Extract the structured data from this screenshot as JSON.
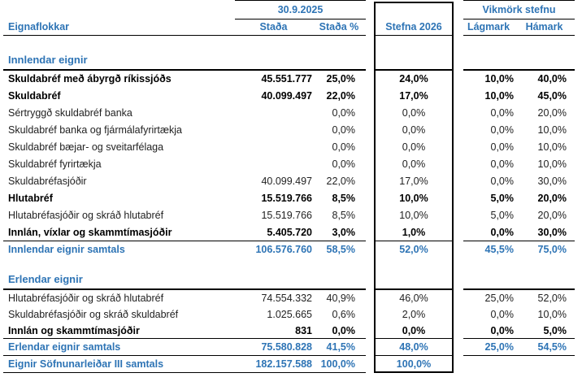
{
  "header": {
    "date_group": "30.9.2025",
    "vikmork_group": "Vikmörk stefnu",
    "col_label": "Eignaflokkar",
    "col_stada": "Staða",
    "col_stada_pct": "Staða %",
    "col_stefna": "Stefna 2026",
    "col_lagmark": "Lágmark",
    "col_hamark": "Hámark"
  },
  "colors": {
    "accent_blue": "#2E74B5",
    "rule_black": "#000000"
  },
  "rows": [
    {
      "type": "section",
      "gap_before": "lg",
      "label": "Innlendar eignir",
      "stada": "",
      "pct": "",
      "stefna": "",
      "lag": "",
      "ham": ""
    },
    {
      "type": "bold",
      "label": "Skuldabréf með ábyrgð ríkissjóðs",
      "stada": "45.551.777",
      "pct": "25,0%",
      "stefna": "24,0%",
      "lag": "10,0%",
      "ham": "40,0%"
    },
    {
      "type": "bold",
      "label": "Skuldabréf",
      "stada": "40.099.497",
      "pct": "22,0%",
      "stefna": "17,0%",
      "lag": "10,0%",
      "ham": "45,0%"
    },
    {
      "type": "normal",
      "label": "Sértryggð skuldabréf banka",
      "stada": "",
      "pct": "0,0%",
      "stefna": "0,0%",
      "lag": "0,0%",
      "ham": "20,0%"
    },
    {
      "type": "normal",
      "label": "Skuldabréf banka og fjármálafyrirtækja",
      "stada": "",
      "pct": "0,0%",
      "stefna": "0,0%",
      "lag": "0,0%",
      "ham": "10,0%"
    },
    {
      "type": "normal",
      "label": "Skuldabréf bæjar- og sveitarfélaga",
      "stada": "",
      "pct": "0,0%",
      "stefna": "0,0%",
      "lag": "0,0%",
      "ham": "10,0%"
    },
    {
      "type": "normal",
      "label": "Skuldabréf fyrirtækja",
      "stada": "",
      "pct": "0,0%",
      "stefna": "0,0%",
      "lag": "0,0%",
      "ham": "10,0%"
    },
    {
      "type": "normal",
      "label": "Skuldabréfasjóðir",
      "stada": "40.099.497",
      "pct": "22,0%",
      "stefna": "17,0%",
      "lag": "0,0%",
      "ham": "30,0%"
    },
    {
      "type": "bold",
      "label": "Hlutabréf",
      "stada": "15.519.766",
      "pct": "8,5%",
      "stefna": "10,0%",
      "lag": "5,0%",
      "ham": "20,0%"
    },
    {
      "type": "normal",
      "label": "Hlutabréfasjóðir og skráð hlutabréf",
      "stada": "15.519.766",
      "pct": "8,5%",
      "stefna": "10,0%",
      "lag": "5,0%",
      "ham": "20,0%"
    },
    {
      "type": "bold",
      "rule_below": true,
      "label": "Innlán, víxlar og skammtímasjóðir",
      "stada": "5.405.720",
      "pct": "3,0%",
      "stefna": "1,0%",
      "lag": "0,0%",
      "ham": "30,0%"
    },
    {
      "type": "total",
      "label": "Innlendar eignir samtals",
      "stada": "106.576.760",
      "pct": "58,5%",
      "stefna": "52,0%",
      "lag": "45,5%",
      "ham": "75,0%"
    },
    {
      "type": "section",
      "gap_before": "sm",
      "label": "Erlendar eignir",
      "stada": "",
      "pct": "",
      "stefna": "",
      "lag": "",
      "ham": ""
    },
    {
      "type": "normal",
      "compact": true,
      "label": "Hlutabréfasjóðir og skráð hlutabréf",
      "stada": "74.554.332",
      "pct": "40,9%",
      "stefna": "46,0%",
      "lag": "25,0%",
      "ham": "52,0%"
    },
    {
      "type": "normal",
      "compact": true,
      "label": "Skuldabréfasjóðir og skráð skuldabréf",
      "stada": "1.025.665",
      "pct": "0,6%",
      "stefna": "2,0%",
      "lag": "0,0%",
      "ham": "10,0%"
    },
    {
      "type": "bold",
      "compact": true,
      "rule_below": true,
      "label": "Innlán og skammtímasjóðir",
      "stada": "831",
      "pct": "0,0%",
      "stefna": "0,0%",
      "lag": "0,0%",
      "ham": "5,0%"
    },
    {
      "type": "total",
      "rule_below": true,
      "label": "Erlendar eignir samtals",
      "stada": "75.580.828",
      "pct": "41,5%",
      "stefna": "48,0%",
      "lag": "25,0%",
      "ham": "54,5%"
    },
    {
      "type": "grand",
      "rule_below": true,
      "label": "Eignir Söfnunarleiðar III samtals",
      "stada": "182.157.588",
      "pct": "100,0%",
      "stefna": "100,0%",
      "lag": "",
      "ham": ""
    }
  ]
}
